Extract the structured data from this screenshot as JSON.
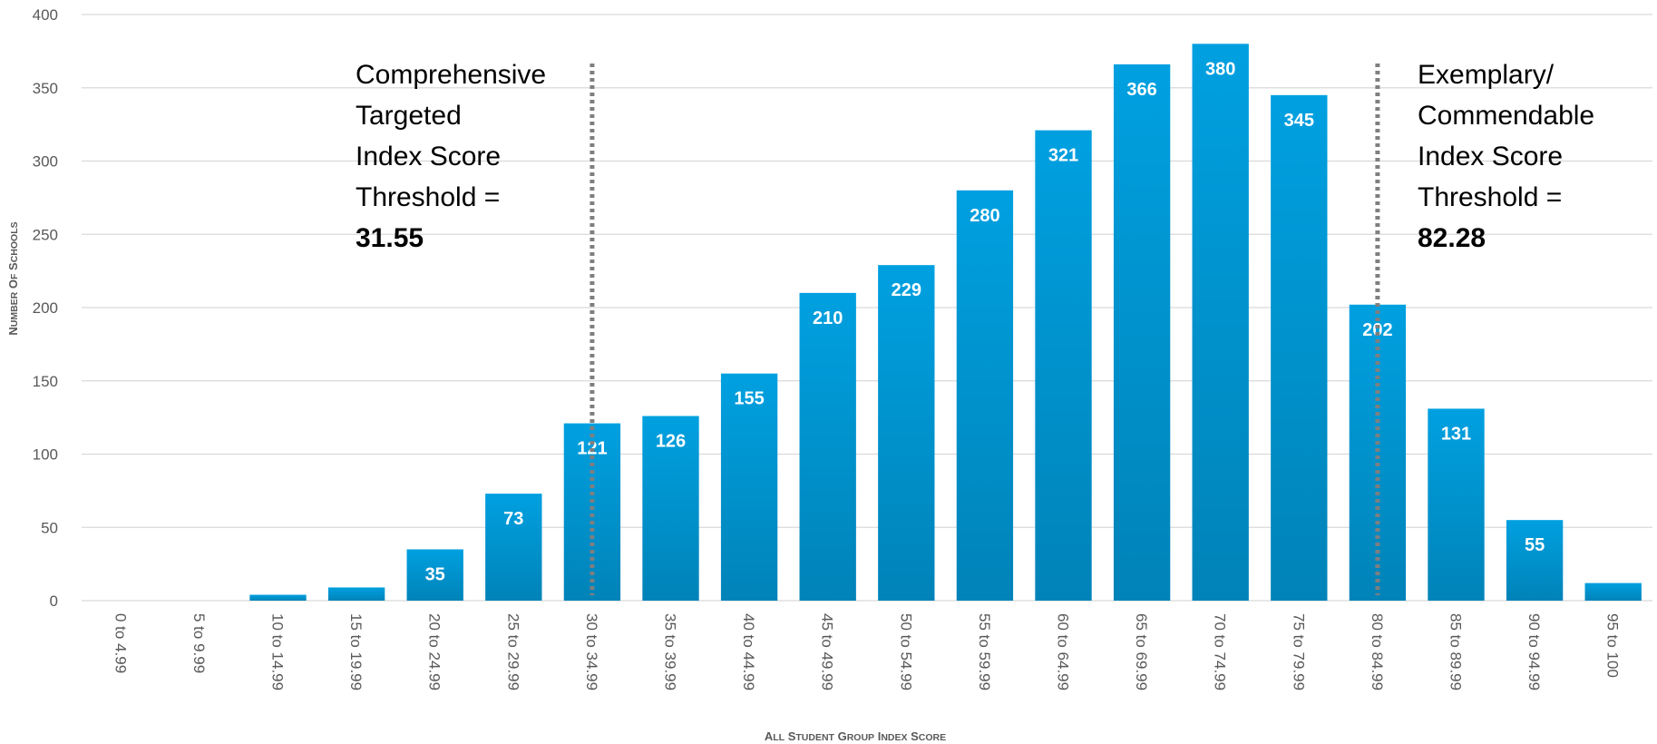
{
  "chart_data": {
    "type": "bar",
    "categories": [
      "0 to 4.99",
      "5 to 9.99",
      "10 to 14.99",
      "15 to 19.99",
      "20 to 24.99",
      "25 to 29.99",
      "30 to 34.99",
      "35 to 39.99",
      "40 to 44.99",
      "45 to 49.99",
      "50 to 54.99",
      "55 to 59.99",
      "60 to 64.99",
      "65 to 69.99",
      "70 to 74.99",
      "75 to 79.99",
      "80 to 84.99",
      "85 to 89.99",
      "90 to 94.99",
      "95 to 100"
    ],
    "values": [
      0,
      0,
      4,
      9,
      35,
      73,
      121,
      126,
      155,
      210,
      229,
      280,
      321,
      366,
      380,
      345,
      202,
      131,
      55,
      12
    ],
    "data_labels": [
      "",
      "",
      "",
      "",
      "35",
      "73",
      "121",
      "126",
      "155",
      "210",
      "229",
      "280",
      "321",
      "366",
      "380",
      "345",
      "202",
      "131",
      "55",
      ""
    ],
    "title": "",
    "xlabel": "All Student Group Index Score",
    "ylabel": "Number of Schools",
    "ylim": [
      0,
      400
    ],
    "yticks": [
      0,
      50,
      100,
      150,
      200,
      250,
      300,
      350,
      400
    ],
    "grid": true,
    "bar_color_top": "#00A0E0",
    "bar_color_bottom": "#0083B8",
    "grid_color": "#D9D9D9",
    "threshold_line_color": "#7F7F7F",
    "annotations": [
      {
        "lines": [
          "Comprehensive",
          "Targeted",
          "Index Score",
          "Threshold ="
        ],
        "value": "31.55",
        "category_index": 6
      },
      {
        "lines": [
          "Exemplary/",
          "Commendable",
          "Index Score",
          "Threshold ="
        ],
        "value": "82.28",
        "category_index": 16
      }
    ]
  }
}
